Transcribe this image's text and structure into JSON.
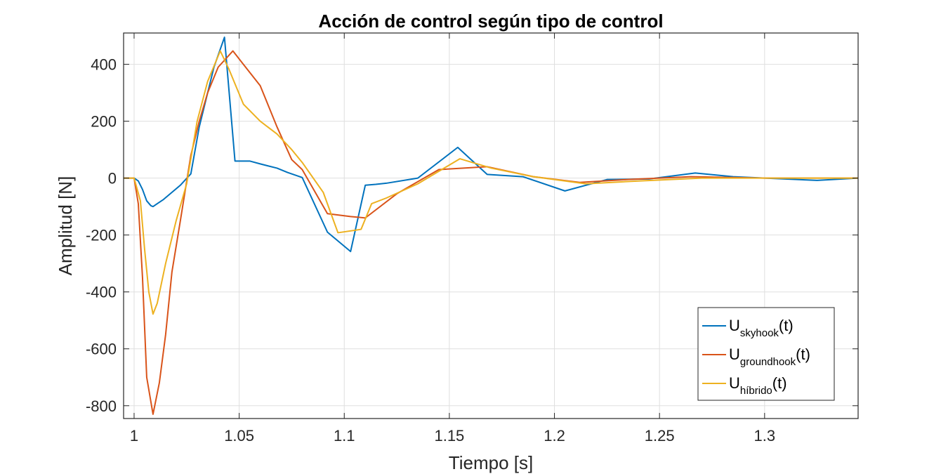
{
  "chart_data": {
    "type": "line",
    "title": "Acción de control según tipo de control",
    "xlabel": "Tiempo [s]",
    "ylabel": "Amplitud [N]",
    "xlim": [
      0.995,
      1.3445
    ],
    "ylim": [
      -845,
      510
    ],
    "grid": true,
    "legend_position": "bottom-right",
    "x_ticks": [
      1,
      1.05,
      1.1,
      1.15,
      1.2,
      1.25,
      1.3
    ],
    "x_tick_labels": [
      "1",
      "1.05",
      "1.1",
      "1.15",
      "1.2",
      "1.25",
      "1.3"
    ],
    "y_ticks": [
      -800,
      -600,
      -400,
      -200,
      0,
      200,
      400
    ],
    "y_tick_labels": [
      "-800",
      "-600",
      "-400",
      "-200",
      "0",
      "200",
      "400"
    ],
    "series": [
      {
        "name": "U",
        "subscript": "skyhook",
        "suffix": "(t)",
        "color": "#0072BD",
        "x": [
          0.995,
          1.0,
          1.002,
          1.004,
          1.006,
          1.008,
          1.009,
          1.011,
          1.014,
          1.018,
          1.022,
          1.027,
          1.031,
          1.035,
          1.038,
          1.043,
          1.048,
          1.055,
          1.06,
          1.068,
          1.073,
          1.08,
          1.092,
          1.103,
          1.11,
          1.115,
          1.12,
          1.135,
          1.154,
          1.168,
          1.185,
          1.205,
          1.225,
          1.245,
          1.267,
          1.285,
          1.3,
          1.325,
          1.3445
        ],
        "y": [
          0,
          0,
          -10,
          -40,
          -80,
          -97,
          -100,
          -90,
          -75,
          -50,
          -25,
          15,
          180,
          300,
          390,
          495,
          60,
          60,
          50,
          35,
          20,
          2,
          -190,
          -258,
          -25,
          -22,
          -18,
          0,
          108,
          13,
          5,
          -45,
          -5,
          -3,
          18,
          5,
          0,
          -8,
          0
        ]
      },
      {
        "name": "U",
        "subscript": "groundhook",
        "suffix": "(t)",
        "color": "#D95319",
        "x": [
          0.995,
          1.0,
          1.002,
          1.004,
          1.006,
          1.009,
          1.012,
          1.015,
          1.018,
          1.022,
          1.027,
          1.031,
          1.035,
          1.04,
          1.047,
          1.052,
          1.06,
          1.068,
          1.075,
          1.08,
          1.092,
          1.103,
          1.11,
          1.125,
          1.145,
          1.168,
          1.19,
          1.212,
          1.235,
          1.265,
          1.3,
          1.3445
        ],
        "y": [
          0,
          0,
          -90,
          -350,
          -700,
          -830,
          -720,
          -550,
          -330,
          -150,
          80,
          200,
          300,
          390,
          447,
          400,
          325,
          180,
          65,
          30,
          -125,
          -135,
          -140,
          -55,
          30,
          40,
          5,
          -15,
          -5,
          5,
          0,
          0
        ]
      },
      {
        "name": "U",
        "subscript": "híbrido",
        "suffix": "(t)",
        "color": "#EDB120",
        "x": [
          0.995,
          1.0,
          1.003,
          1.005,
          1.007,
          1.009,
          1.011,
          1.015,
          1.02,
          1.025,
          1.03,
          1.035,
          1.041,
          1.045,
          1.052,
          1.06,
          1.068,
          1.075,
          1.08,
          1.09,
          1.097,
          1.108,
          1.113,
          1.12,
          1.135,
          1.155,
          1.17,
          1.19,
          1.215,
          1.24,
          1.27,
          1.3,
          1.3445
        ],
        "y": [
          0,
          0,
          -80,
          -250,
          -400,
          -478,
          -440,
          -300,
          -150,
          -20,
          200,
          340,
          447,
          385,
          260,
          200,
          155,
          100,
          55,
          -50,
          -192,
          -180,
          -90,
          -70,
          -20,
          68,
          35,
          5,
          -20,
          -10,
          0,
          0,
          0
        ]
      }
    ]
  }
}
